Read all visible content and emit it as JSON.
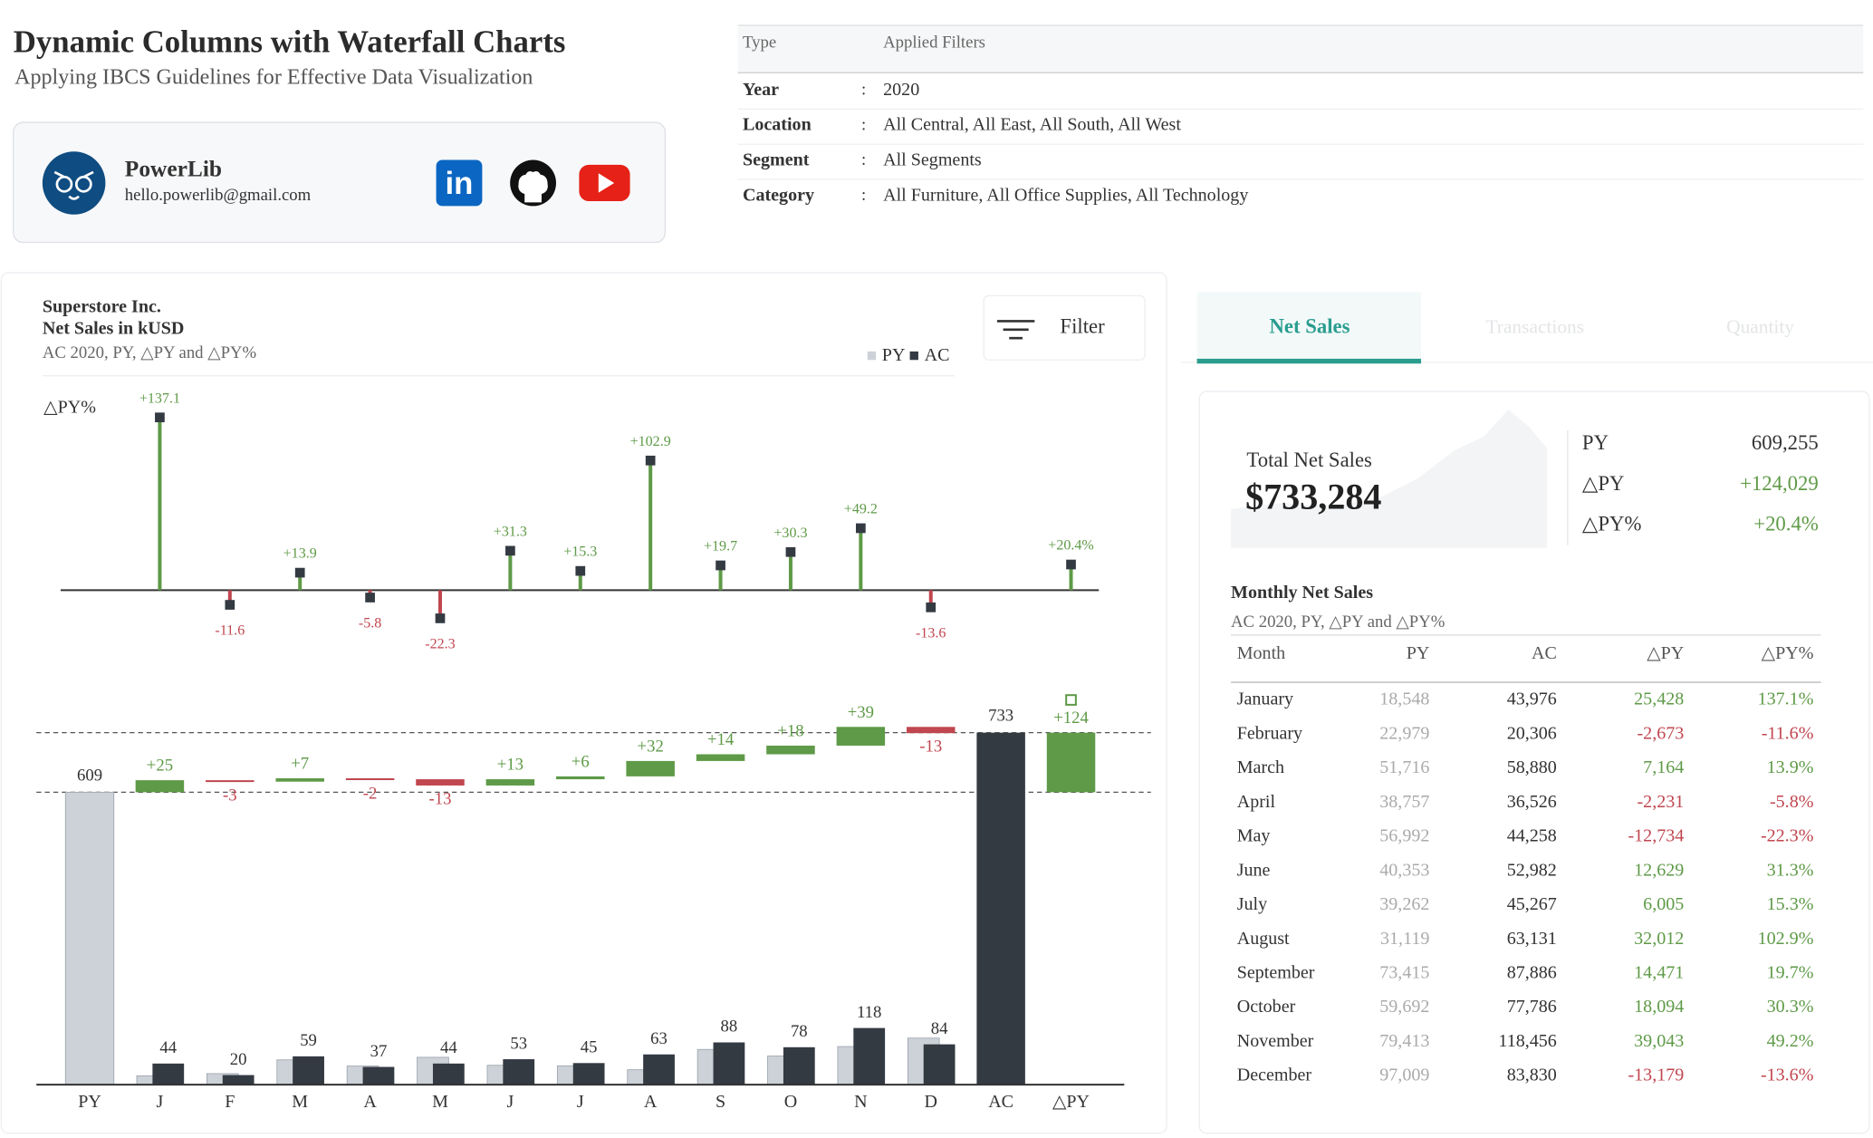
{
  "header": {
    "title": "Dynamic Columns with Waterfall Charts",
    "subtitle": "Applying IBCS Guidelines for Effective Data Visualization"
  },
  "profile": {
    "name": "PowerLib",
    "email": "hello.powerlib@gmail.com"
  },
  "filters": {
    "columns": [
      "Type",
      "Applied Filters"
    ],
    "separator": ":",
    "rows": [
      {
        "type": "Year",
        "value": "2020"
      },
      {
        "type": "Location",
        "value": "All Central, All East, All South, All West"
      },
      {
        "type": "Segment",
        "value": "All Segments"
      },
      {
        "type": "Category",
        "value": "All Furniture, All Office Supplies, All Technology"
      }
    ]
  },
  "report": {
    "company": "Superstore Inc.",
    "measure": "Net Sales in kUSD",
    "subtitle": "AC 2020, PY, △PY and △PY%",
    "filter_button": "Filter"
  },
  "chart_data": [
    {
      "type": "pin",
      "axis_label": "△PY%",
      "values": [
        137.1,
        -11.6,
        13.9,
        -5.8,
        -22.3,
        31.3,
        15.3,
        102.9,
        19.7,
        30.3,
        49.2,
        -13.6,
        20.4
      ],
      "value_labels": [
        "+137.1",
        "-11.6",
        "+13.9",
        "-5.8",
        "-22.3",
        "+31.3",
        "+15.3",
        "+102.9",
        "+19.7",
        "+30.3",
        "+49.2",
        "-13.6",
        "+20.4%"
      ],
      "ylim": [
        -50,
        150
      ],
      "positive_color": "#5e9a47",
      "negative_color": "#c0464f",
      "marker_color": "#343a42"
    },
    {
      "type": "waterfall",
      "categories": [
        "PY",
        "J",
        "F",
        "M",
        "A",
        "M",
        "J",
        "J",
        "A",
        "S",
        "O",
        "N",
        "D",
        "AC",
        "△PY"
      ],
      "series": [
        {
          "name": "PY",
          "color": "#cdd2d9",
          "values": [
            609,
            18.5,
            23.0,
            51.7,
            38.8,
            57.0,
            40.4,
            39.3,
            31.1,
            73.4,
            59.7,
            79.4,
            97.0,
            null,
            null
          ]
        },
        {
          "name": "AC",
          "color": "#343a42",
          "values": [
            null,
            44,
            20,
            59,
            37,
            44,
            53,
            45,
            63,
            88,
            78,
            118,
            84,
            733,
            null
          ]
        }
      ],
      "deltas": [
        null,
        25,
        -3,
        7,
        -2,
        -13,
        13,
        6,
        32,
        14,
        18,
        39,
        -13,
        null,
        124
      ],
      "delta_labels": [
        null,
        "+25",
        "-3",
        "+7",
        "-2",
        "-13",
        "+13",
        "+6",
        "+32",
        "+14",
        "+18",
        "+39",
        "-13",
        null,
        "+124"
      ],
      "positive_color": "#5e9a47",
      "negative_color": "#c0464f",
      "ylim": [
        0,
        800
      ]
    }
  ],
  "tabs": [
    "Net Sales",
    "Transactions",
    "Quantity"
  ],
  "kpi": {
    "label": "Total Net Sales",
    "value": "$733,284",
    "rows": [
      {
        "label": "PY",
        "value": "609,255"
      },
      {
        "label": "△PY",
        "value": "+124,029"
      },
      {
        "label": "△PY%",
        "value": "+20.4%"
      }
    ]
  },
  "table": {
    "title": "Monthly Net Sales",
    "subtitle": "AC 2020, PY, △PY and △PY%",
    "columns": [
      "Month",
      "PY",
      "AC",
      "△PY",
      "△PY%"
    ],
    "rows": [
      [
        "January",
        "18,548",
        "43,976",
        "25,428",
        "137.1%"
      ],
      [
        "February",
        "22,979",
        "20,306",
        "-2,673",
        "-11.6%"
      ],
      [
        "March",
        "51,716",
        "58,880",
        "7,164",
        "13.9%"
      ],
      [
        "April",
        "38,757",
        "36,526",
        "-2,231",
        "-5.8%"
      ],
      [
        "May",
        "56,992",
        "44,258",
        "-12,734",
        "-22.3%"
      ],
      [
        "June",
        "40,353",
        "52,982",
        "12,629",
        "31.3%"
      ],
      [
        "July",
        "39,262",
        "45,267",
        "6,005",
        "15.3%"
      ],
      [
        "August",
        "31,119",
        "63,131",
        "32,012",
        "102.9%"
      ],
      [
        "September",
        "73,415",
        "87,886",
        "14,471",
        "19.7%"
      ],
      [
        "October",
        "59,692",
        "77,786",
        "18,094",
        "30.3%"
      ],
      [
        "November",
        "79,413",
        "118,456",
        "39,043",
        "49.2%"
      ],
      [
        "December",
        "97,009",
        "83,830",
        "-13,179",
        "-13.6%"
      ]
    ]
  }
}
